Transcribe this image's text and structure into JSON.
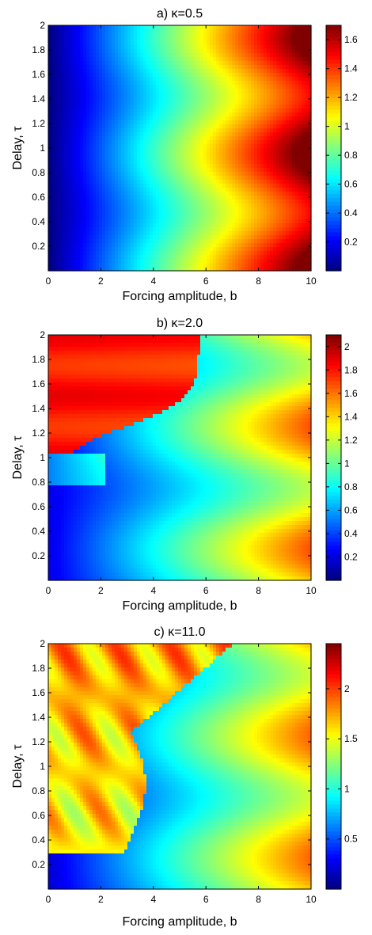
{
  "chart_data": [
    {
      "type": "heatmap",
      "title": "a) κ=0.5",
      "xlabel": "Forcing amplitude, b",
      "ylabel": "Delay, τ",
      "xlim": [
        0,
        10
      ],
      "ylim": [
        0,
        2
      ],
      "x_ticks": [
        "0",
        "2",
        "4",
        "6",
        "8",
        "10"
      ],
      "y_ticks": [
        "0.2",
        "0.4",
        "0.6",
        "0.8",
        "1",
        "1.2",
        "1.4",
        "1.6",
        "1.8",
        "2"
      ],
      "colorbar": {
        "range": [
          0,
          1.7
        ],
        "tick_values": [
          0.2,
          0.4,
          0.6,
          0.8,
          1.0,
          1.2,
          1.4,
          1.6
        ],
        "tick_labels": [
          "0.2",
          "0.4",
          "0.6",
          "0.8",
          "1",
          "1.2",
          "1.4",
          "1.6"
        ]
      },
      "colormap": "jet"
    },
    {
      "type": "heatmap",
      "title": "b) κ=2.0",
      "xlabel": "Forcing amplitude, b",
      "ylabel": "Delay, τ",
      "xlim": [
        0,
        10
      ],
      "ylim": [
        0,
        2
      ],
      "x_ticks": [
        "0",
        "2",
        "4",
        "6",
        "8",
        "10"
      ],
      "y_ticks": [
        "0.2",
        "0.4",
        "0.6",
        "0.8",
        "1",
        "1.2",
        "1.4",
        "1.6",
        "1.8",
        "2"
      ],
      "colorbar": {
        "range": [
          0,
          2.1
        ],
        "tick_values": [
          0.2,
          0.4,
          0.6,
          0.8,
          1.0,
          1.2,
          1.4,
          1.6,
          1.8,
          2.0
        ],
        "tick_labels": [
          "0.2",
          "0.4",
          "0.6",
          "0.8",
          "1",
          "1.2",
          "1.4",
          "1.6",
          "1.8",
          "2"
        ]
      },
      "colormap": "jet"
    },
    {
      "type": "heatmap",
      "title": "c) κ=11.0",
      "xlabel": "Forcing amplitude, b",
      "ylabel": "Delay, τ",
      "xlim": [
        0,
        10
      ],
      "ylim": [
        0,
        2
      ],
      "x_ticks": [
        "0",
        "2",
        "4",
        "6",
        "8",
        "10"
      ],
      "y_ticks": [
        "0.2",
        "0.4",
        "0.6",
        "0.8",
        "1",
        "1.2",
        "1.4",
        "1.6",
        "1.8",
        "2"
      ],
      "colorbar": {
        "range": [
          0,
          2.45
        ],
        "tick_values": [
          0.5,
          1.0,
          1.5,
          2.0
        ],
        "tick_labels": [
          "0.5",
          "1",
          "1.5",
          "2"
        ]
      },
      "colormap": "jet"
    }
  ]
}
